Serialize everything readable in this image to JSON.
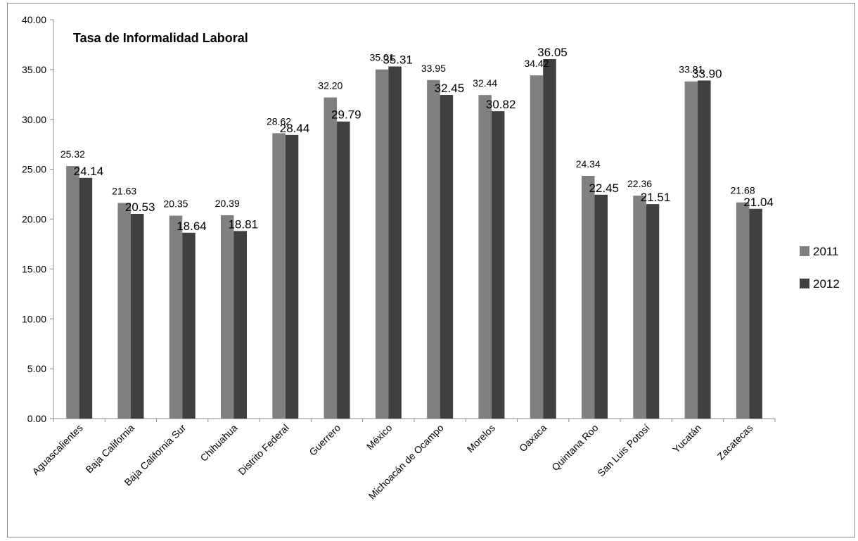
{
  "chart_data": {
    "type": "bar",
    "title": "Tasa de Informalidad Laboral",
    "xlabel": "",
    "ylabel": "",
    "ylim": [
      0,
      40
    ],
    "ytick_labels": [
      "0.00",
      "5.00",
      "10.00",
      "15.00",
      "20.00",
      "25.00",
      "30.00",
      "35.00",
      "40.00"
    ],
    "grid": false,
    "legend_position": "right",
    "categories": [
      "Aguascalientes",
      "Baja California",
      "Baja California Sur",
      "Chihuahua",
      "Distrito Federal",
      "Guerrero",
      "México",
      "Michoacán de Ocampo",
      "Morelos",
      "Oaxaca",
      "Quintana Roo",
      "San Luis Potosí",
      "Yucatán",
      "Zacatecas"
    ],
    "series": [
      {
        "name": "2011",
        "color": "#808080",
        "values": [
          25.32,
          21.63,
          20.35,
          20.39,
          28.62,
          32.2,
          35.01,
          33.95,
          32.44,
          34.42,
          24.34,
          22.36,
          33.81,
          21.68
        ],
        "labels": [
          "25.32",
          "21.63",
          "20.35",
          "20.39",
          "28.62",
          "32.20",
          "35.01",
          "33.95",
          "32.44",
          "34.42",
          "24.34",
          "22.36",
          "33.81",
          "21.68"
        ]
      },
      {
        "name": "2012",
        "color": "#404040",
        "values": [
          24.14,
          20.53,
          18.64,
          18.81,
          28.44,
          29.79,
          35.31,
          32.45,
          30.82,
          36.05,
          22.45,
          21.51,
          33.9,
          21.04
        ],
        "labels": [
          "24.14",
          "20.53",
          "18.64",
          "18.81",
          "28.44",
          "29.79",
          "35.31",
          "32.45",
          "30.82",
          "36.05",
          "22.45",
          "21.51",
          "33.90",
          "21.04"
        ]
      }
    ]
  }
}
